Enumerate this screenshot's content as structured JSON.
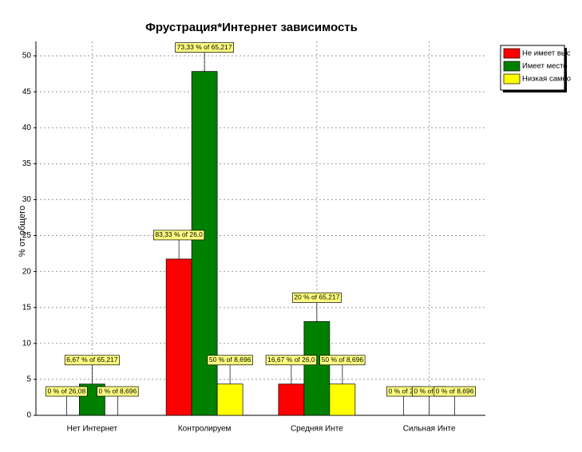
{
  "chart_data": {
    "type": "bar",
    "title": "Фрустрация*Интернет зависимость",
    "y_label": "% от общего",
    "categories": [
      "Нет Интернет",
      "Контролируем",
      "Средняя Инте",
      "Сильная Инте"
    ],
    "series": [
      {
        "name": "Не имеет выс",
        "color": "#ff0000",
        "values": [
          0,
          21.74,
          4.35,
          0
        ],
        "labels": [
          "0 % of 26,08",
          "83,33 % of 26,0",
          "16,67 % of 26,0",
          "0 % of 26,"
        ]
      },
      {
        "name": "Имеет место",
        "color": "#008000",
        "values": [
          4.35,
          47.83,
          13.04,
          0
        ],
        "labels": [
          "6,67 % of 65,217",
          "73,33 % of 65,217",
          "20 % of 65,217",
          "0 % of 65,"
        ]
      },
      {
        "name": "Низкая самоо",
        "color": "#ffff00",
        "values": [
          0,
          4.35,
          4.35,
          0
        ],
        "labels": [
          "0 % of 8,696",
          "50 % of 8,696",
          "50 % of 8,696",
          "0 % of 8,696"
        ]
      }
    ],
    "ylim": [
      0,
      52
    ],
    "yticks": [
      0,
      5,
      10,
      15,
      20,
      25,
      30,
      35,
      40,
      45,
      50
    ],
    "grid": true,
    "legend": "top-right"
  }
}
